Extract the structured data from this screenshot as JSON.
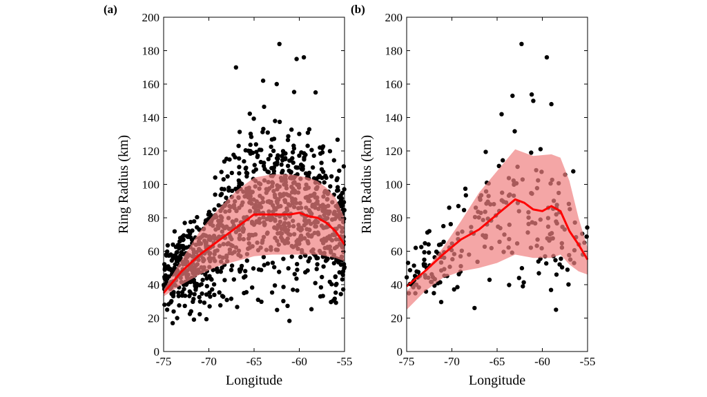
{
  "chart_data": [
    {
      "type": "scatter",
      "panel_label": "(a)",
      "xlabel": "Longitude",
      "ylabel": "Ring Radius (km)",
      "xlim": [
        -75,
        -55
      ],
      "ylim": [
        0,
        200
      ],
      "xticks": [
        -75,
        -70,
        -65,
        -60,
        -55
      ],
      "yticks": [
        0,
        20,
        40,
        60,
        80,
        100,
        120,
        140,
        160,
        180,
        200
      ],
      "colors": {
        "points": "#000000",
        "band": "#f08080",
        "mean_line": "#ff0000"
      },
      "mean_line": {
        "x": [
          -75,
          -73,
          -71,
          -69,
          -67,
          -65,
          -63,
          -61,
          -60,
          -59,
          -58,
          -57,
          -56,
          -55
        ],
        "y": [
          35,
          48,
          58,
          66,
          74,
          82,
          82,
          82,
          83,
          81,
          80,
          77,
          72,
          64
        ]
      },
      "band": {
        "x": [
          -75,
          -73,
          -71,
          -69,
          -67,
          -65,
          -63,
          -61,
          -59,
          -58,
          -57,
          -56,
          -55
        ],
        "upper": [
          37,
          55,
          72,
          85,
          96,
          104,
          106,
          106,
          104,
          102,
          98,
          92,
          80
        ],
        "lower": [
          33,
          40,
          46,
          51,
          54,
          57,
          58,
          58,
          58,
          58,
          57,
          56,
          54
        ]
      },
      "scatter_summary": {
        "n_points": 1100,
        "mean": [
          [
            -75,
            44
          ],
          [
            -70,
            60
          ],
          [
            -65,
            90
          ],
          [
            -60,
            88
          ],
          [
            -55,
            70
          ]
        ],
        "spread": [
          [
            -75,
            10
          ],
          [
            -70,
            20
          ],
          [
            -65,
            30
          ],
          [
            -60,
            28
          ],
          [
            -55,
            22
          ]
        ],
        "min": 15,
        "max": 185
      },
      "scatter_highlights": [
        {
          "x": -62.2,
          "y": 184
        },
        {
          "x": -60.3,
          "y": 175
        },
        {
          "x": -59.5,
          "y": 176
        },
        {
          "x": -67.0,
          "y": 170
        },
        {
          "x": -64.0,
          "y": 162
        },
        {
          "x": -62.5,
          "y": 160
        },
        {
          "x": -58.2,
          "y": 155
        },
        {
          "x": -74.0,
          "y": 17
        },
        {
          "x": -73.5,
          "y": 20
        }
      ]
    },
    {
      "type": "scatter",
      "panel_label": "(b)",
      "xlabel": "Longitude",
      "ylabel": "Ring Radius (km)",
      "xlim": [
        -75,
        -55
      ],
      "ylim": [
        0,
        200
      ],
      "xticks": [
        -75,
        -70,
        -65,
        -60,
        -55
      ],
      "yticks": [
        0,
        20,
        40,
        60,
        80,
        100,
        120,
        140,
        160,
        180,
        200
      ],
      "colors": {
        "points": "#000000",
        "band": "#f08080",
        "mean_line": "#ff0000"
      },
      "mean_line": {
        "x": [
          -75,
          -73,
          -71,
          -69,
          -67,
          -65,
          -63,
          -62,
          -61,
          -60,
          -59,
          -58,
          -57,
          -56,
          -55
        ],
        "y": [
          39,
          48,
          58,
          67,
          73,
          82,
          91,
          89,
          85,
          84,
          87,
          84,
          72,
          64,
          55
        ]
      },
      "band": {
        "x": [
          -75,
          -73,
          -71,
          -69,
          -67,
          -65,
          -63,
          -61,
          -59,
          -58,
          -57,
          -56,
          -55
        ],
        "upper": [
          36,
          48,
          62,
          78,
          95,
          108,
          121,
          117,
          118,
          116,
          102,
          80,
          62
        ],
        "lower": [
          25,
          36,
          44,
          48,
          50,
          53,
          58,
          56,
          56,
          58,
          52,
          48,
          46
        ]
      },
      "scatter_summary": {
        "n_points": 230,
        "mean": [
          [
            -75,
            42
          ],
          [
            -70,
            62
          ],
          [
            -65,
            82
          ],
          [
            -60,
            82
          ],
          [
            -55,
            62
          ]
        ],
        "spread": [
          [
            -75,
            8
          ],
          [
            -70,
            16
          ],
          [
            -65,
            26
          ],
          [
            -60,
            28
          ],
          [
            -55,
            18
          ]
        ],
        "min": 25,
        "max": 185
      },
      "scatter_highlights": [
        {
          "x": -62.3,
          "y": 184
        },
        {
          "x": -59.5,
          "y": 176
        },
        {
          "x": -63.3,
          "y": 153
        },
        {
          "x": -61.0,
          "y": 150
        },
        {
          "x": -59.0,
          "y": 148
        },
        {
          "x": -64.5,
          "y": 142
        },
        {
          "x": -67.5,
          "y": 26
        },
        {
          "x": -74.0,
          "y": 62
        }
      ]
    }
  ]
}
